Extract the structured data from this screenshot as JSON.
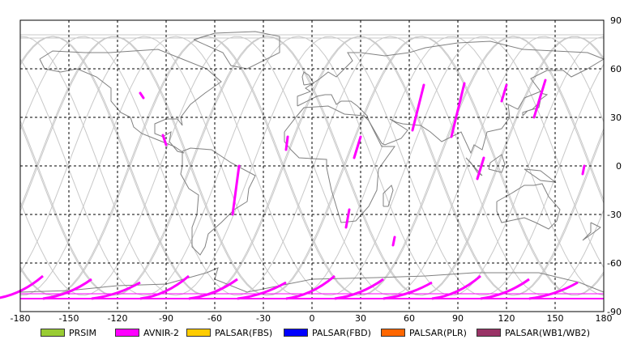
{
  "map": {
    "projection": "equirectangular",
    "lon_range": [
      -180,
      180
    ],
    "lat_range": [
      -90,
      90
    ],
    "grid": "dashed, every 30 degrees",
    "lon_ticks": [
      "-180",
      "-150",
      "-120",
      "-90",
      "-60",
      "-30",
      "0",
      "30",
      "60",
      "90",
      "120",
      "150",
      "180"
    ],
    "lat_ticks": [
      "90",
      "60",
      "30",
      "0",
      "-30",
      "-60",
      "-90"
    ],
    "orbit_track_color": "#c8c8c8",
    "coastline_color": "#808080"
  },
  "legend": [
    {
      "label": "PRSIM",
      "color": "#99cc33"
    },
    {
      "label": "AVNIR-2",
      "color": "#ff00ff"
    },
    {
      "label": "PALSAR(FBS)",
      "color": "#ffcc00"
    },
    {
      "label": "PALSAR(FBD)",
      "color": "#0000ff"
    },
    {
      "label": "PALSAR(PLR)",
      "color": "#ff6600"
    },
    {
      "label": "PALSAR(WB1/WB2)",
      "color": "#993366"
    }
  ],
  "observations": [
    {
      "sensor": "AVNIR-2",
      "segments": [
        {
          "from": [
            -106,
            45
          ],
          "to": [
            -104,
            42
          ]
        },
        {
          "from": [
            -92,
            19
          ],
          "to": [
            -90,
            13
          ]
        },
        {
          "from": [
            -45,
            0
          ],
          "to": [
            -49,
            -30
          ]
        },
        {
          "from": [
            -15,
            18
          ],
          "to": [
            -16,
            10
          ]
        },
        {
          "from": [
            30,
            18
          ],
          "to": [
            26,
            5
          ]
        },
        {
          "from": [
            23,
            -27
          ],
          "to": [
            21,
            -38
          ]
        },
        {
          "from": [
            51,
            -44
          ],
          "to": [
            50,
            -49
          ]
        },
        {
          "from": [
            69,
            50
          ],
          "to": [
            62,
            22
          ]
        },
        {
          "from": [
            94,
            51
          ],
          "to": [
            86,
            18
          ]
        },
        {
          "from": [
            106,
            5
          ],
          "to": [
            102,
            -8
          ]
        },
        {
          "from": [
            120,
            50
          ],
          "to": [
            117,
            40
          ]
        },
        {
          "from": [
            144,
            53
          ],
          "to": [
            137,
            30
          ]
        },
        {
          "from": [
            168,
            0
          ],
          "to": [
            167,
            -5
          ]
        }
      ]
    }
  ]
}
